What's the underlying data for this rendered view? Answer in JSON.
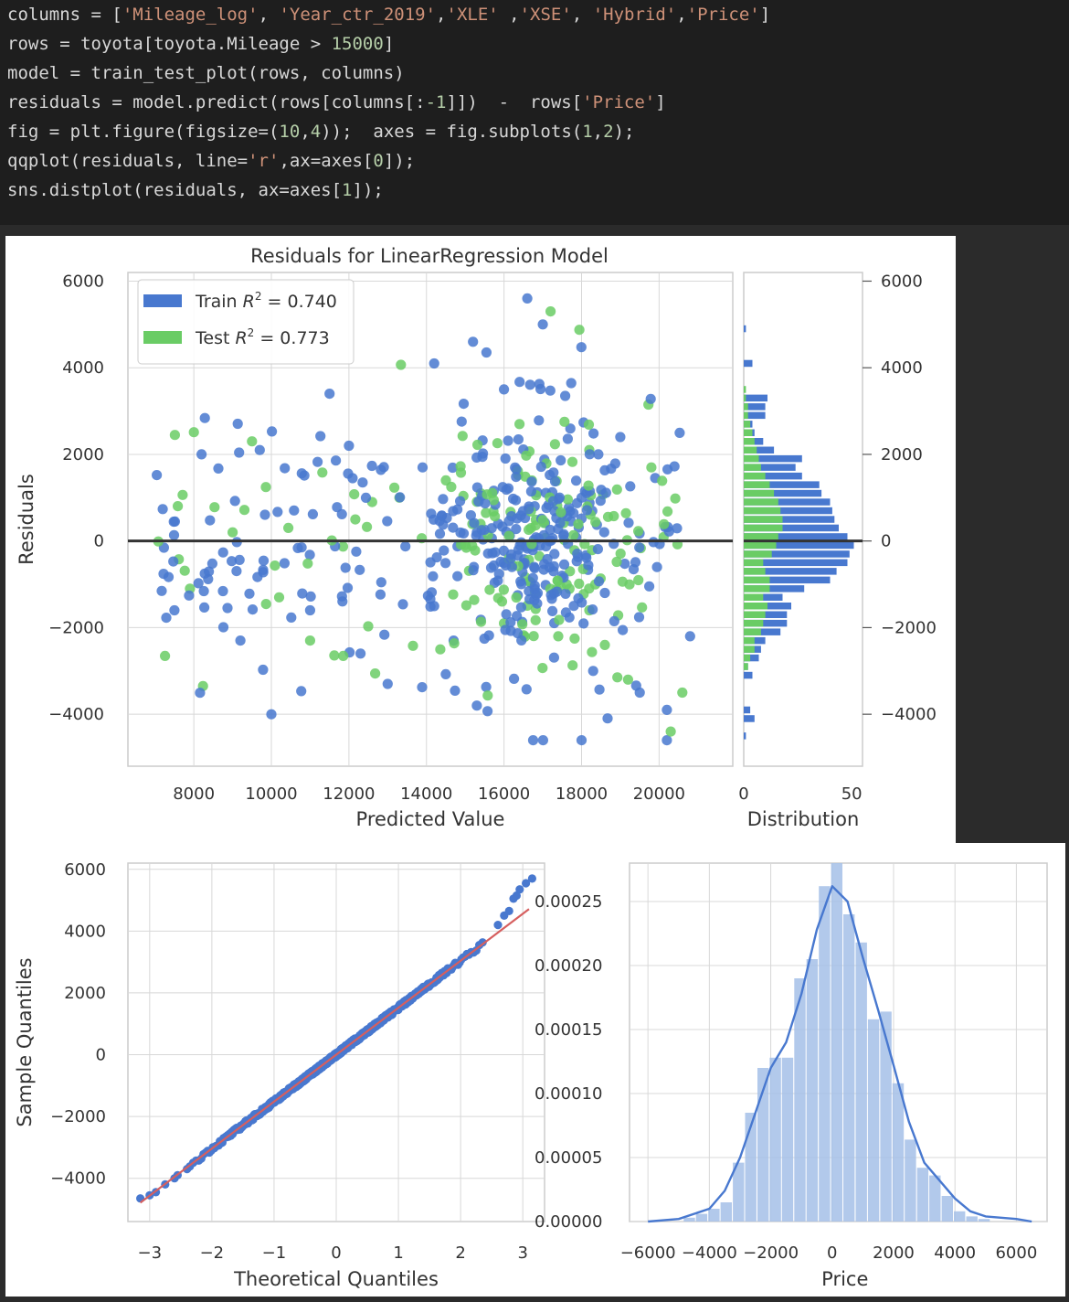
{
  "code": {
    "lines": [
      [
        [
          "columns = [",
          "t"
        ],
        [
          "'Mileage_log'",
          "s"
        ],
        [
          ", ",
          "t"
        ],
        [
          "'Year_ctr_2019'",
          "s"
        ],
        [
          ",",
          "t"
        ],
        [
          "'XLE'",
          "s"
        ],
        [
          " ,",
          "t"
        ],
        [
          "'XSE'",
          "s"
        ],
        [
          ", ",
          "t"
        ],
        [
          "'Hybrid'",
          "s"
        ],
        [
          ",",
          "t"
        ],
        [
          "'Price'",
          "s"
        ],
        [
          "]",
          "t"
        ]
      ],
      [
        [
          "rows = toyota[toyota.Mileage > ",
          "t"
        ],
        [
          "15000",
          "n"
        ],
        [
          "]",
          "t"
        ]
      ],
      [
        [
          "model = train_test_plot(rows, columns)",
          "t"
        ]
      ],
      [
        [
          "residuals = model.predict(rows[columns[:",
          "t"
        ],
        [
          "-1",
          "n"
        ],
        [
          "]])  -  rows[",
          "t"
        ],
        [
          "'Price'",
          "s"
        ],
        [
          "]",
          "t"
        ]
      ],
      [
        [
          "fig = plt.figure(figsize=(",
          "t"
        ],
        [
          "10",
          "n"
        ],
        [
          ",",
          "t"
        ],
        [
          "4",
          "n"
        ],
        [
          "));  axes = fig.subplots(",
          "t"
        ],
        [
          "1",
          "n"
        ],
        [
          ",",
          "t"
        ],
        [
          "2",
          "n"
        ],
        [
          ");",
          "t"
        ]
      ],
      [
        [
          "qqplot(residuals, line=",
          "t"
        ],
        [
          "'r'",
          "s"
        ],
        [
          ",ax=axes[",
          "t"
        ],
        [
          "0",
          "n"
        ],
        [
          "]);",
          "t"
        ]
      ],
      [
        [
          "sns.distplot(residuals, ax=axes[",
          "t"
        ],
        [
          "1",
          "n"
        ],
        [
          "]);",
          "t"
        ]
      ]
    ]
  },
  "colors": {
    "train": "#4878cf",
    "test": "#6acc65",
    "qq_line": "#d65f5f",
    "hist": "#a4bfe8",
    "kde": "#4878cf",
    "grid": "#d8d8d8"
  },
  "chart_data": [
    {
      "type": "scatter",
      "title": "Residuals for LinearRegression Model",
      "xlabel": "Predicted Value",
      "ylabel": "Residuals",
      "xlim": [
        6300,
        21900
      ],
      "ylim": [
        -5200,
        6200
      ],
      "xticks": [
        "8000",
        "10000",
        "12000",
        "14000",
        "16000",
        "18000",
        "20000"
      ],
      "yticks": [
        "6000",
        "4000",
        "2000",
        "0",
        "−2000",
        "−4000"
      ],
      "grid": true,
      "legend_position": "top-left",
      "series": [
        {
          "name": "Train",
          "legend": [
            "Train ",
            "R",
            "2",
            " = 0.740"
          ],
          "color_key": "train"
        },
        {
          "name": "Test",
          "legend": [
            "Test ",
            "R",
            "2",
            " = 0.773"
          ],
          "color_key": "test"
        }
      ],
      "representative_points": {
        "train": [
          [
            7500,
            -1600
          ],
          [
            8200,
            2000
          ],
          [
            9200,
            -2300
          ],
          [
            9700,
            2100
          ],
          [
            11000,
            -1600
          ],
          [
            11500,
            3400
          ],
          [
            12000,
            2200
          ],
          [
            12300,
            -2600
          ],
          [
            13000,
            -3300
          ],
          [
            13900,
            1700
          ],
          [
            14200,
            4100
          ],
          [
            14700,
            -2300
          ],
          [
            15300,
            200
          ],
          [
            16000,
            3500
          ],
          [
            16600,
            5600
          ],
          [
            17000,
            5000
          ],
          [
            17300,
            -300
          ],
          [
            17500,
            -800
          ],
          [
            17800,
            -1500
          ],
          [
            18000,
            1000
          ],
          [
            18300,
            -3000
          ],
          [
            18600,
            -1200
          ],
          [
            19000,
            2400
          ],
          [
            19500,
            -3500
          ],
          [
            20200,
            -3900
          ],
          [
            20800,
            -2200
          ],
          [
            20200,
            -4600
          ],
          [
            18000,
            -4600
          ],
          [
            10000,
            -4000
          ],
          [
            15300,
            -3800
          ],
          [
            15200,
            4600
          ]
        ],
        "test": [
          [
            7900,
            -1100
          ],
          [
            9000,
            200
          ],
          [
            9500,
            2300
          ],
          [
            10200,
            -1300
          ],
          [
            11000,
            -2300
          ],
          [
            12600,
            900
          ],
          [
            13300,
            1000
          ],
          [
            14500,
            1400
          ],
          [
            15400,
            1100
          ],
          [
            16000,
            -1900
          ],
          [
            16400,
            2700
          ],
          [
            16800,
            -1200
          ],
          [
            17200,
            5300
          ],
          [
            17700,
            -700
          ],
          [
            18200,
            2100
          ],
          [
            18600,
            -2400
          ],
          [
            19200,
            -3200
          ],
          [
            19800,
            1700
          ],
          [
            20300,
            -4400
          ],
          [
            20600,
            -3500
          ],
          [
            18200,
            -1600
          ],
          [
            17400,
            -2200
          ]
        ]
      },
      "trend_line": {
        "y": 0
      }
    },
    {
      "type": "bar",
      "title": "",
      "xlabel": "Distribution",
      "orientation": "horizontal",
      "xlim": [
        0,
        55
      ],
      "ylim": [
        -5200,
        6200
      ],
      "xticks": [
        "0",
        "50"
      ],
      "yticks": [
        "6000",
        "4000",
        "2000",
        "0",
        "−2000",
        "−4000"
      ],
      "bin_edges": [
        -4600,
        -4400,
        -4200,
        -4000,
        -3800,
        -3600,
        -3400,
        -3200,
        -3000,
        -2800,
        -2600,
        -2400,
        -2200,
        -2000,
        -1800,
        -1600,
        -1400,
        -1200,
        -1000,
        -800,
        -600,
        -400,
        -200,
        0,
        200,
        400,
        600,
        800,
        1000,
        1200,
        1400,
        1600,
        1800,
        2000,
        2200,
        2400,
        2600,
        2800,
        3000,
        3200,
        3400,
        3600,
        3800,
        4000,
        4200,
        4400,
        4600,
        4800,
        5000,
        5200
      ],
      "series": [
        {
          "name": "Train",
          "color_key": "train",
          "values": [
            1,
            0,
            5,
            3,
            0,
            0,
            0,
            4,
            2,
            7,
            8,
            10,
            17,
            20,
            20,
            22,
            18,
            28,
            40,
            43,
            48,
            49,
            51,
            48,
            44,
            42,
            41,
            40,
            36,
            35,
            27,
            24,
            27,
            14,
            9,
            5,
            4,
            10,
            10,
            11,
            0,
            0,
            0,
            4,
            0,
            0,
            0,
            1,
            0
          ]
        },
        {
          "name": "Test",
          "color_key": "test",
          "values": [
            0,
            0,
            0,
            0,
            0,
            0,
            0,
            0,
            2,
            3,
            5,
            5,
            8,
            9,
            10,
            11,
            9,
            12,
            12,
            10,
            9,
            13,
            15,
            16,
            18,
            18,
            17,
            16,
            14,
            12,
            10,
            8,
            7,
            6,
            5,
            4,
            3,
            2,
            2,
            1,
            1,
            0,
            0,
            0,
            0,
            0,
            0,
            0,
            0
          ]
        }
      ]
    },
    {
      "type": "scatter",
      "title": "",
      "xlabel": "Theoretical Quantiles",
      "ylabel": "Sample Quantiles",
      "xlim": [
        -3.35,
        3.35
      ],
      "ylim": [
        -5400,
        6200
      ],
      "xticks": [
        "−3",
        "−2",
        "−1",
        "0",
        "1",
        "2",
        "3"
      ],
      "yticks": [
        "6000",
        "4000",
        "2000",
        "0",
        "−2000",
        "−4000"
      ],
      "grid": true,
      "reference_line": {
        "intercept": 0,
        "slope": 1520
      },
      "tail_points": [
        [
          -3.15,
          -4650
        ],
        [
          -3.0,
          -4550
        ],
        [
          -2.9,
          -4450
        ],
        [
          -2.75,
          -4200
        ],
        [
          -2.6,
          -4000
        ],
        [
          -2.55,
          -3900
        ],
        [
          -2.4,
          -3700
        ],
        [
          2.6,
          4200
        ],
        [
          2.7,
          4500
        ],
        [
          2.78,
          4650
        ],
        [
          2.85,
          5050
        ],
        [
          2.9,
          5150
        ],
        [
          2.95,
          5350
        ],
        [
          3.05,
          5550
        ],
        [
          3.15,
          5700
        ]
      ]
    },
    {
      "type": "bar",
      "title": "",
      "xlabel": "Price",
      "ylabel": "",
      "xlim": [
        -6600,
        7000
      ],
      "ylim": [
        0,
        0.00028
      ],
      "xticks": [
        "−6000",
        "−4000",
        "−2000",
        "0",
        "2000",
        "4000",
        "6000"
      ],
      "yticks": [
        "0.00025",
        "0.00020",
        "0.00015",
        "0.00010",
        "0.00005",
        "0.00000"
      ],
      "grid": true,
      "bin_edges": [
        -4850,
        -4450,
        -4050,
        -3650,
        -3250,
        -2850,
        -2450,
        -2050,
        -1650,
        -1250,
        -850,
        -450,
        -50,
        350,
        750,
        1150,
        1550,
        1950,
        2350,
        2750,
        3150,
        3550,
        3950,
        4350,
        4750,
        5150
      ],
      "values": [
        3e-06,
        6e-06,
        1e-05,
        1.5e-05,
        4.6e-05,
        8.5e-05,
        0.00012,
        0.000128,
        0.000128,
        0.00019,
        0.000205,
        0.000262,
        0.00028,
        0.00024,
        0.000218,
        0.000158,
        0.000164,
        0.000108,
        6.4e-05,
        4.2e-05,
        3.6e-05,
        2e-05,
        8e-06,
        4e-06,
        2e-06
      ],
      "kde": {
        "x": [
          -6000,
          -5000,
          -4000,
          -3500,
          -3000,
          -2500,
          -2000,
          -1500,
          -1000,
          -500,
          0,
          500,
          1000,
          1500,
          2000,
          2500,
          3000,
          3500,
          4000,
          4500,
          5000,
          5500,
          6000,
          6500
        ],
        "y": [
          0,
          2e-06,
          1e-05,
          2.4e-05,
          5e-05,
          8.5e-05,
          0.00012,
          0.00014,
          0.000178,
          0.000228,
          0.000262,
          0.00025,
          0.000206,
          0.000165,
          0.000122,
          7.8e-05,
          4.6e-05,
          3.2e-05,
          1.8e-05,
          8e-06,
          4e-06,
          3e-06,
          2e-06,
          0
        ]
      }
    }
  ]
}
